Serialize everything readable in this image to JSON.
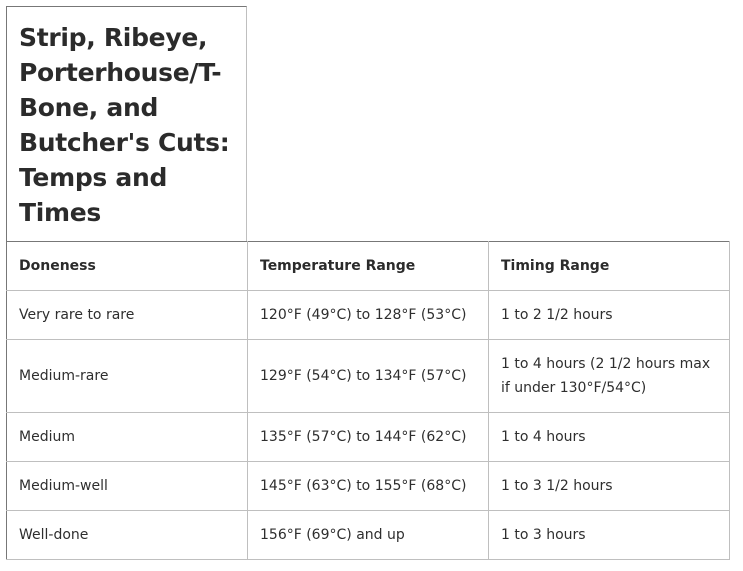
{
  "table": {
    "title": "Strip, Ribeye, Porterhouse/T-Bone, and Butcher's Cuts: Temps and Times",
    "headers": [
      "Doneness",
      "Temperature Range",
      "Timing Range"
    ],
    "rows": [
      [
        "Very rare to rare",
        "120°F (49°C) to 128°F (53°C)",
        "1 to 2 1/2 hours"
      ],
      [
        "Medium-rare",
        "129°F (54°C) to 134°F (57°C)",
        "1 to 4 hours (2 1/2 hours max if under 130°F/54°C)"
      ],
      [
        "Medium",
        "135°F (57°C) to 144°F (62°C)",
        "1 to 4 hours"
      ],
      [
        "Medium-well",
        "145°F (63°C) to 155°F (68°C)",
        "1 to 3 1/2 hours"
      ],
      [
        "Well-done",
        "156°F (69°C) and up",
        "1 to 3 hours"
      ]
    ]
  }
}
